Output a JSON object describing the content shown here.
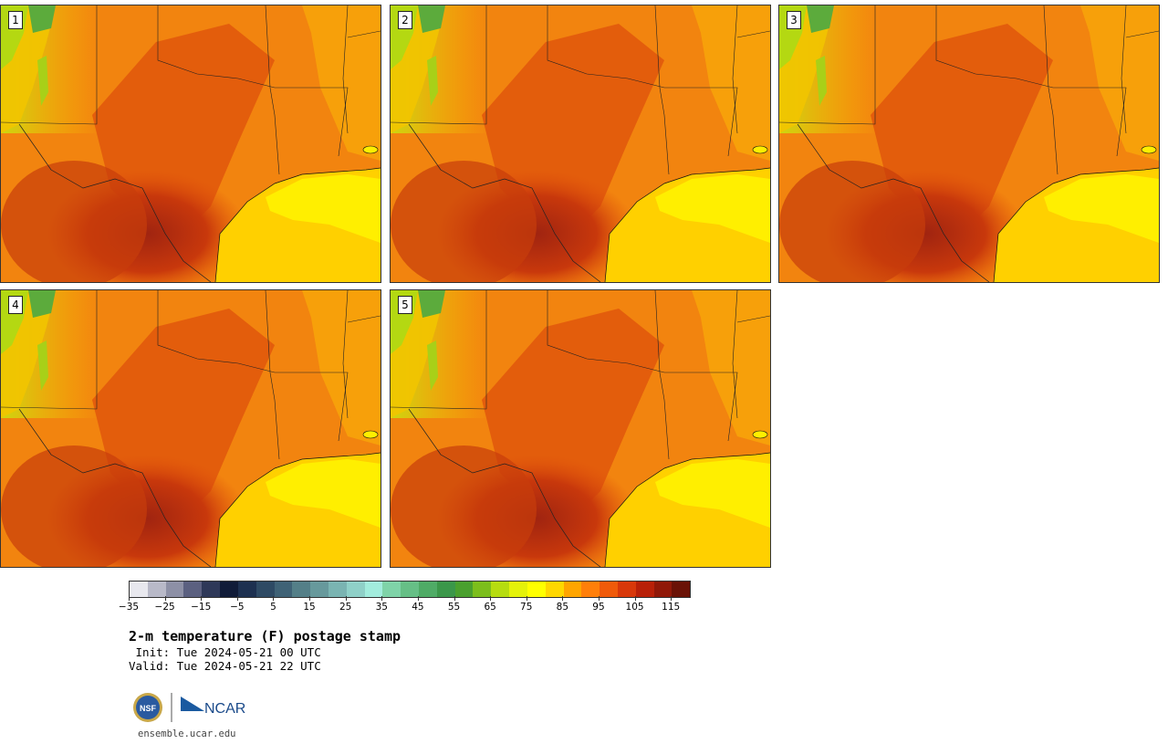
{
  "members": [
    {
      "label": "1"
    },
    {
      "label": "2"
    },
    {
      "label": "3"
    },
    {
      "label": "4"
    },
    {
      "label": "5"
    }
  ],
  "colorbar": {
    "colors": [
      "#e8e8ee",
      "#b8b9c8",
      "#8d90a6",
      "#5b6080",
      "#2e3858",
      "#101b38",
      "#1d3050",
      "#2e4a64",
      "#3f6276",
      "#547f88",
      "#67999c",
      "#7ab4b2",
      "#8fd0c8",
      "#a2ecdd",
      "#7fd3a8",
      "#66bf86",
      "#4fab66",
      "#3b974a",
      "#4aa02e",
      "#7cbe1c",
      "#b6dc10",
      "#e4f20a",
      "#ffff00",
      "#ffd700",
      "#ffa500",
      "#ff7f0a",
      "#f05a0a",
      "#d8380a",
      "#b82008",
      "#901808",
      "#6a1206"
    ],
    "tick_labels": [
      "−35",
      "−25",
      "−15",
      "−5",
      "5",
      "15",
      "25",
      "35",
      "45",
      "55",
      "65",
      "75",
      "85",
      "95",
      "105",
      "115"
    ]
  },
  "title": "2-m temperature (F) postage stamp",
  "init": " Init: Tue 2024-05-21 00 UTC",
  "valid": "Valid: Tue 2024-05-21 22 UTC",
  "logos": {
    "nsf": "NSF",
    "ncar": "NCAR"
  },
  "website": "ensemble.ucar.edu"
}
